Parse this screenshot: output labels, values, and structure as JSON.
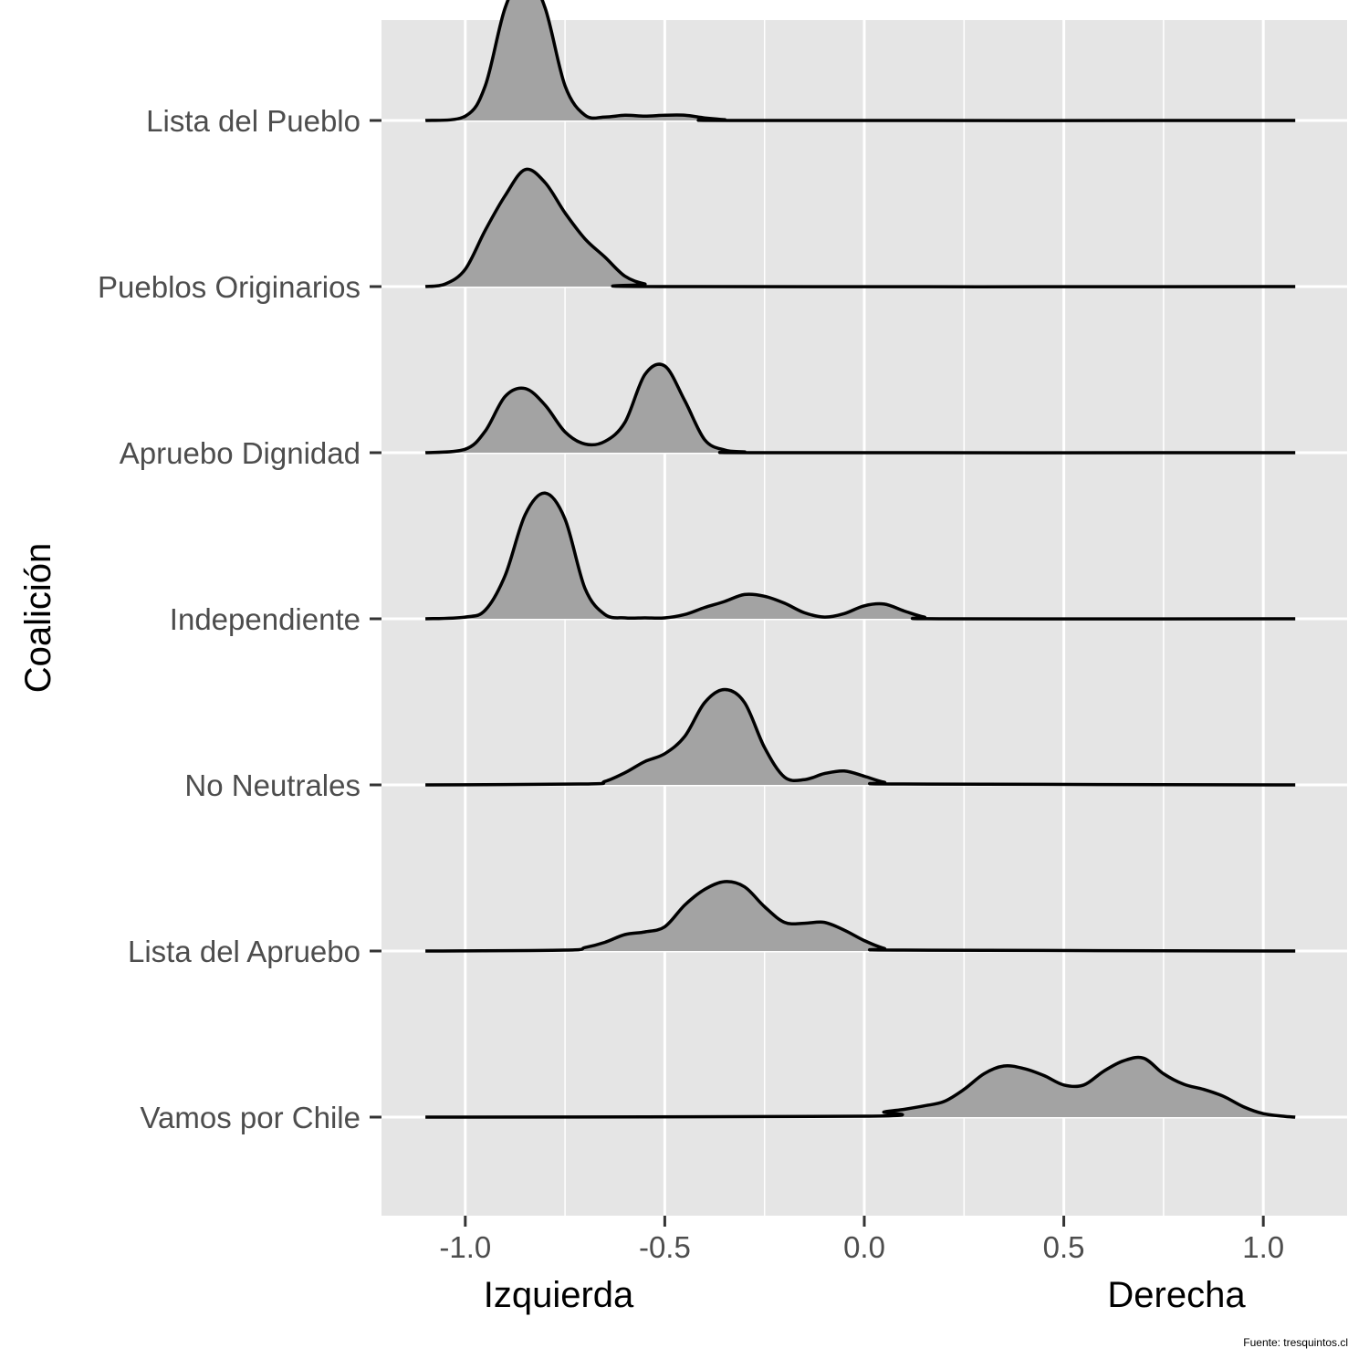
{
  "chart_data": {
    "type": "ridgeline",
    "ylabel": "Coalición",
    "x_end_labels": {
      "left": "Izquierda",
      "right": "Derecha"
    },
    "caption": "Fuente: tresquintos.cl",
    "xlim": [
      -1.21,
      1.21
    ],
    "x_ticks": [
      -1.0,
      -0.5,
      0.0,
      0.5,
      1.0
    ],
    "x_tick_labels": [
      "-1.0",
      "-0.5",
      "0.0",
      "0.5",
      "1.0"
    ],
    "density_range": [
      -1.1,
      1.08
    ],
    "grid": true,
    "fill_color": "#a3a3a3",
    "line_color": "#000000",
    "panel_color": "#e5e5e5",
    "series": [
      {
        "name": "Vamos por Chile",
        "x": [
          -1.1,
          0.0,
          0.05,
          0.1,
          0.15,
          0.2,
          0.25,
          0.3,
          0.35,
          0.4,
          0.45,
          0.5,
          0.55,
          0.6,
          0.65,
          0.7,
          0.75,
          0.8,
          0.85,
          0.9,
          0.95,
          1.0,
          1.05,
          1.08
        ],
        "y": [
          0,
          0.01,
          0.06,
          0.09,
          0.13,
          0.18,
          0.32,
          0.5,
          0.59,
          0.56,
          0.48,
          0.37,
          0.37,
          0.53,
          0.65,
          0.68,
          0.5,
          0.38,
          0.32,
          0.24,
          0.12,
          0.04,
          0.01,
          0
        ]
      },
      {
        "name": "Lista del Apruebo",
        "x": [
          -1.1,
          -0.75,
          -0.7,
          -0.65,
          -0.6,
          -0.55,
          -0.5,
          -0.45,
          -0.4,
          -0.35,
          -0.3,
          -0.25,
          -0.2,
          -0.15,
          -0.1,
          -0.05,
          0.0,
          0.05,
          0.1,
          1.08
        ],
        "y": [
          0,
          0.01,
          0.04,
          0.1,
          0.19,
          0.22,
          0.28,
          0.53,
          0.71,
          0.8,
          0.74,
          0.51,
          0.33,
          0.32,
          0.33,
          0.24,
          0.12,
          0.03,
          0.01,
          0
        ]
      },
      {
        "name": "No Neutrales",
        "x": [
          -1.1,
          -0.7,
          -0.65,
          -0.6,
          -0.55,
          -0.5,
          -0.45,
          -0.4,
          -0.35,
          -0.3,
          -0.25,
          -0.2,
          -0.15,
          -0.1,
          -0.05,
          0.0,
          0.05,
          0.1,
          1.08
        ],
        "y": [
          0,
          0.01,
          0.04,
          0.14,
          0.27,
          0.36,
          0.56,
          0.95,
          1.1,
          0.95,
          0.43,
          0.09,
          0.06,
          0.13,
          0.16,
          0.1,
          0.03,
          0.01,
          0
        ]
      },
      {
        "name": "Independiente",
        "x": [
          -1.1,
          -1.0,
          -0.95,
          -0.9,
          -0.85,
          -0.8,
          -0.75,
          -0.7,
          -0.65,
          -0.6,
          -0.55,
          -0.5,
          -0.45,
          -0.4,
          -0.35,
          -0.3,
          -0.25,
          -0.2,
          -0.15,
          -0.1,
          -0.05,
          0.0,
          0.05,
          0.1,
          0.15,
          0.2,
          1.08
        ],
        "y": [
          0,
          0.02,
          0.1,
          0.5,
          1.2,
          1.45,
          1.15,
          0.35,
          0.05,
          0.01,
          0.01,
          0.01,
          0.05,
          0.13,
          0.2,
          0.28,
          0.26,
          0.18,
          0.07,
          0.02,
          0.06,
          0.15,
          0.17,
          0.09,
          0.02,
          0,
          0
        ]
      },
      {
        "name": "Apruebo Dignidad",
        "x": [
          -1.1,
          -1.0,
          -0.95,
          -0.9,
          -0.85,
          -0.8,
          -0.75,
          -0.7,
          -0.65,
          -0.6,
          -0.55,
          -0.5,
          -0.45,
          -0.4,
          -0.35,
          -0.3,
          -0.25,
          1.08
        ],
        "y": [
          0,
          0.04,
          0.25,
          0.65,
          0.74,
          0.55,
          0.24,
          0.1,
          0.13,
          0.35,
          0.9,
          1.0,
          0.6,
          0.15,
          0.03,
          0.01,
          0,
          0
        ]
      },
      {
        "name": "Pueblos Originarios",
        "x": [
          -1.1,
          -1.05,
          -1.0,
          -0.95,
          -0.9,
          -0.85,
          -0.8,
          -0.75,
          -0.7,
          -0.65,
          -0.6,
          -0.55,
          -0.5,
          1.08
        ],
        "y": [
          0,
          0.03,
          0.2,
          0.65,
          1.05,
          1.35,
          1.2,
          0.85,
          0.55,
          0.34,
          0.12,
          0.03,
          0,
          0
        ]
      },
      {
        "name": "Lista del Pueblo",
        "x": [
          -1.1,
          -1.0,
          -0.95,
          -0.9,
          -0.85,
          -0.8,
          -0.75,
          -0.7,
          -0.65,
          -0.6,
          -0.55,
          -0.5,
          -0.45,
          -0.4,
          -0.35,
          -0.3,
          1.08
        ],
        "y": [
          0,
          0.05,
          0.4,
          1.3,
          1.7,
          1.3,
          0.4,
          0.06,
          0.04,
          0.06,
          0.05,
          0.06,
          0.06,
          0.03,
          0.01,
          0,
          0
        ]
      }
    ]
  }
}
